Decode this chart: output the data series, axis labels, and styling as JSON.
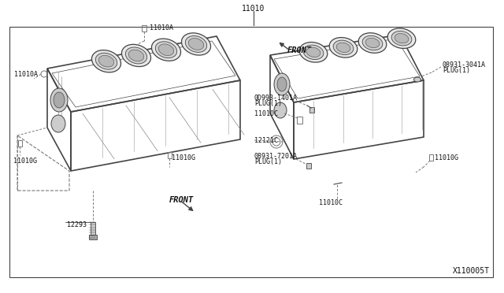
{
  "bg_color": "#ffffff",
  "border_color": "#333333",
  "diagram_title": "11010",
  "diagram_ref": "X110005T",
  "line_color": "#444444",
  "text_color": "#111111",
  "gray_color": "#777777",
  "labels": {
    "left_top_label": "11010A",
    "left_side_label": "11010A",
    "left_bot_label": "11010G",
    "left_mid_label": "11010G",
    "left_bolt_label": "12293",
    "left_front": "FRONT",
    "right_front": "FRONT",
    "r_top_right1": "08931-3041A",
    "r_top_right2": "PLUG(1)",
    "r_mid1_1": "0D993-1401A",
    "r_mid1_2": "PLUG(1)",
    "r_mid2": "11010C",
    "r_small": "12121C",
    "r_bot1_1": "08931-7201A",
    "r_bot1_2": "PLUG(1)",
    "r_bot2": "11010C",
    "r_bot_right": "11010G"
  }
}
